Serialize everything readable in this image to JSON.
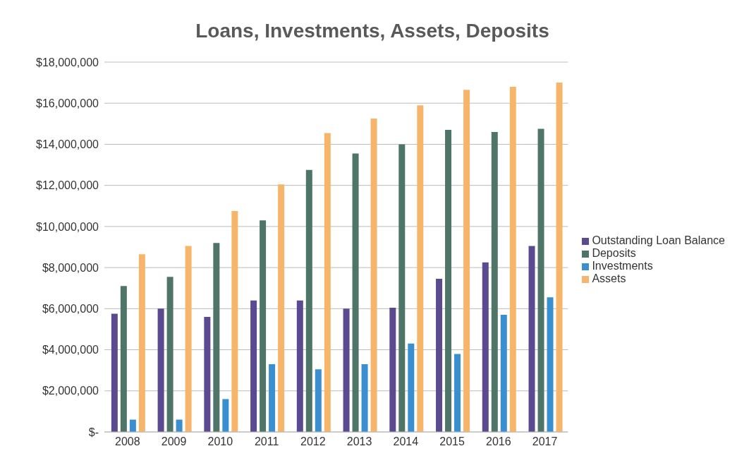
{
  "chart_data": {
    "type": "bar",
    "title": "Loans, Investments, Assets, Deposits",
    "categories": [
      "2008",
      "2009",
      "2010",
      "2011",
      "2012",
      "2013",
      "2014",
      "2015",
      "2016",
      "2017"
    ],
    "series": [
      {
        "name": "Outstanding Loan Balance",
        "color": "#5b4a8f",
        "values": [
          5750000,
          6000000,
          5600000,
          6400000,
          6400000,
          6000000,
          6050000,
          7450000,
          8250000,
          9050000
        ]
      },
      {
        "name": "Deposits",
        "color": "#4f7568",
        "values": [
          7100000,
          7550000,
          9200000,
          10300000,
          12750000,
          13550000,
          14000000,
          14700000,
          14600000,
          14750000
        ]
      },
      {
        "name": "Investments",
        "color": "#3a8fd0",
        "values": [
          600000,
          600000,
          1600000,
          3300000,
          3050000,
          3300000,
          4300000,
          3800000,
          5700000,
          6550000
        ]
      },
      {
        "name": "Assets",
        "color": "#f7b56b",
        "values": [
          8650000,
          9050000,
          10750000,
          12050000,
          14550000,
          15250000,
          15900000,
          16650000,
          16800000,
          17000000
        ]
      }
    ],
    "ylim": [
      0,
      18000000
    ],
    "yticks": [
      {
        "value": 0,
        "label": "$-"
      },
      {
        "value": 2000000,
        "label": "$2,000,000"
      },
      {
        "value": 4000000,
        "label": "$4,000,000"
      },
      {
        "value": 6000000,
        "label": "$6,000,000"
      },
      {
        "value": 8000000,
        "label": "$8,000,000"
      },
      {
        "value": 10000000,
        "label": "$10,000,000"
      },
      {
        "value": 12000000,
        "label": "$12,000,000"
      },
      {
        "value": 14000000,
        "label": "$14,000,000"
      },
      {
        "value": 16000000,
        "label": "$16,000,000"
      },
      {
        "value": 18000000,
        "label": "$18,000,000"
      }
    ],
    "grid": "y",
    "legend": "right"
  }
}
